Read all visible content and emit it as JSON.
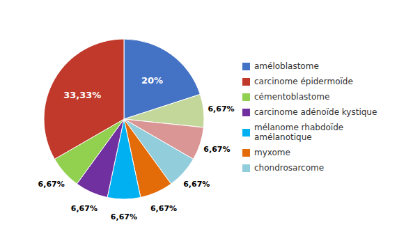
{
  "chart_data": {
    "type": "pie",
    "values": [
      20.0,
      6.67,
      6.67,
      6.67,
      6.67,
      6.67,
      6.67,
      6.67,
      33.33
    ],
    "value_labels": [
      "20%",
      "6,67%",
      "6,67%",
      "6,67%",
      "6,67%",
      "6,67%",
      "6,67%",
      "6,67%",
      "33,33%"
    ],
    "colors": [
      "#4472C4",
      "#C4D79B",
      "#DA9694",
      "#92CDDC",
      "#E36C09",
      "#00B0F0",
      "#7030A0",
      "#92D050",
      "#C0392B"
    ],
    "data_labels": true,
    "legend": "right",
    "legend_entries": [
      {
        "name": "améloblastome",
        "color": "#4472C4"
      },
      {
        "name": "carcinome épidermoïde",
        "color": "#C0392B"
      },
      {
        "name": "cémentoblastome",
        "color": "#92D050"
      },
      {
        "name": "carcinome adénoïde kystique",
        "color": "#7030A0"
      },
      {
        "name": "mélanome rhabdoïde\namélanotique",
        "color": "#00B0F0"
      },
      {
        "name": "myxome",
        "color": "#E36C09"
      },
      {
        "name": "chondrosarcome",
        "color": "#92CDDC"
      }
    ]
  }
}
